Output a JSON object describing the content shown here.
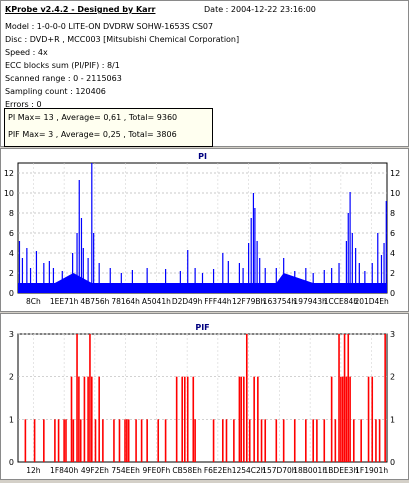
{
  "info": {
    "title": "KProbe v2.4.2 - Designed by Karr",
    "date": "Date : 2004-12-22 23:16:00",
    "lines": [
      "Model : 1-0-0-0 LITE-ON DVDRW SOHW-1653S CS07",
      "Disc : DVD+R , MCC003 [Mitsubishi Chemical Corporation]",
      "Speed : 4x",
      "ECC blocks sum (PI/PIF) : 8/1",
      "Scanned range : 0 - 2115063",
      "Sampling count : 120406",
      "Errors : 0"
    ],
    "summary": [
      "PI Max= 13 , Average= 0,61 , Total= 9360",
      "PIF Max= 3 , Average= 0,25 , Total= 3806"
    ]
  },
  "chart_data": [
    {
      "type": "bar",
      "title": "PI",
      "color": "#0000ff",
      "ylim": [
        0,
        13
      ],
      "yticks": [
        0,
        2,
        4,
        6,
        8,
        10,
        12
      ],
      "xticks": [
        "8Ch",
        "1EE71h",
        "4B756h",
        "78164h",
        "A5041h",
        "D2D49h",
        "FFF44h",
        "12F79Bh",
        "163754h",
        "197943h",
        "1CCE84h",
        "201D4Eh"
      ],
      "grid": true,
      "baseline": [
        [
          0,
          1
        ],
        [
          0.1,
          1
        ],
        [
          0.15,
          2
        ],
        [
          0.2,
          1
        ],
        [
          0.4,
          1
        ],
        [
          0.5,
          1
        ],
        [
          0.7,
          1
        ],
        [
          0.72,
          2
        ],
        [
          0.8,
          1
        ],
        [
          1,
          1
        ]
      ],
      "peaks": [
        [
          0.004,
          5.2
        ],
        [
          0.012,
          3.5
        ],
        [
          0.024,
          4.5
        ],
        [
          0.034,
          2.5
        ],
        [
          0.05,
          4.2
        ],
        [
          0.07,
          3.0
        ],
        [
          0.085,
          3.2
        ],
        [
          0.096,
          2.5
        ],
        [
          0.12,
          2.2
        ],
        [
          0.148,
          4.0
        ],
        [
          0.16,
          6.0
        ],
        [
          0.166,
          11.3
        ],
        [
          0.172,
          7.5
        ],
        [
          0.177,
          4.5
        ],
        [
          0.19,
          3.5
        ],
        [
          0.2,
          13.0
        ],
        [
          0.205,
          6.0
        ],
        [
          0.22,
          3.0
        ],
        [
          0.25,
          2.5
        ],
        [
          0.28,
          2.0
        ],
        [
          0.31,
          2.3
        ],
        [
          0.35,
          2.5
        ],
        [
          0.4,
          2.4
        ],
        [
          0.44,
          2.2
        ],
        [
          0.46,
          4.3
        ],
        [
          0.48,
          2.5
        ],
        [
          0.5,
          2.0
        ],
        [
          0.53,
          2.4
        ],
        [
          0.555,
          4.0
        ],
        [
          0.57,
          3.2
        ],
        [
          0.6,
          3.0
        ],
        [
          0.61,
          2.5
        ],
        [
          0.625,
          5.0
        ],
        [
          0.632,
          7.5
        ],
        [
          0.638,
          10.0
        ],
        [
          0.642,
          8.5
        ],
        [
          0.648,
          5.2
        ],
        [
          0.655,
          3.5
        ],
        [
          0.67,
          2.5
        ],
        [
          0.7,
          2.5
        ],
        [
          0.72,
          3.5
        ],
        [
          0.75,
          2.2
        ],
        [
          0.78,
          2.5
        ],
        [
          0.8,
          2.0
        ],
        [
          0.83,
          2.3
        ],
        [
          0.85,
          2.5
        ],
        [
          0.87,
          3.0
        ],
        [
          0.89,
          5.2
        ],
        [
          0.895,
          8.0
        ],
        [
          0.9,
          10.1
        ],
        [
          0.906,
          6.0
        ],
        [
          0.915,
          4.5
        ],
        [
          0.925,
          3.0
        ],
        [
          0.94,
          2.2
        ],
        [
          0.96,
          3.0
        ],
        [
          0.975,
          6.0
        ],
        [
          0.985,
          3.8
        ],
        [
          0.992,
          5.0
        ],
        [
          0.998,
          9.2
        ]
      ]
    },
    {
      "type": "bar",
      "title": "PIF",
      "color": "#ff0000",
      "ylim": [
        0,
        3
      ],
      "yticks": [
        0,
        1,
        2,
        3
      ],
      "xticks": [
        "12h",
        "1F840h",
        "49F2Eh",
        "754EEh",
        "9FE0Fh",
        "CB58Eh",
        "F6E2Eh",
        "1254C2h",
        "157D70h",
        "18B001h",
        "1BDEE3h",
        "1F1901h"
      ],
      "grid": true,
      "bars": [
        [
          0.02,
          1
        ],
        [
          0.045,
          1
        ],
        [
          0.07,
          1
        ],
        [
          0.1,
          1
        ],
        [
          0.11,
          1
        ],
        [
          0.125,
          1
        ],
        [
          0.13,
          1
        ],
        [
          0.145,
          2
        ],
        [
          0.15,
          1
        ],
        [
          0.16,
          3
        ],
        [
          0.165,
          2
        ],
        [
          0.17,
          1
        ],
        [
          0.18,
          2
        ],
        [
          0.19,
          2
        ],
        [
          0.195,
          3
        ],
        [
          0.2,
          2
        ],
        [
          0.21,
          1
        ],
        [
          0.22,
          2
        ],
        [
          0.23,
          1
        ],
        [
          0.26,
          1
        ],
        [
          0.275,
          1
        ],
        [
          0.29,
          1
        ],
        [
          0.295,
          1
        ],
        [
          0.3,
          1
        ],
        [
          0.32,
          1
        ],
        [
          0.335,
          1
        ],
        [
          0.35,
          1
        ],
        [
          0.38,
          1
        ],
        [
          0.4,
          1
        ],
        [
          0.43,
          2
        ],
        [
          0.445,
          2
        ],
        [
          0.452,
          2
        ],
        [
          0.46,
          2
        ],
        [
          0.475,
          2
        ],
        [
          0.48,
          1
        ],
        [
          0.53,
          1
        ],
        [
          0.555,
          1
        ],
        [
          0.565,
          1
        ],
        [
          0.585,
          1
        ],
        [
          0.6,
          2
        ],
        [
          0.605,
          2
        ],
        [
          0.612,
          2
        ],
        [
          0.62,
          3
        ],
        [
          0.628,
          1
        ],
        [
          0.64,
          2
        ],
        [
          0.65,
          2
        ],
        [
          0.66,
          1
        ],
        [
          0.67,
          1
        ],
        [
          0.7,
          1
        ],
        [
          0.72,
          1
        ],
        [
          0.75,
          1
        ],
        [
          0.78,
          1
        ],
        [
          0.8,
          1
        ],
        [
          0.81,
          1
        ],
        [
          0.83,
          1
        ],
        [
          0.85,
          2
        ],
        [
          0.86,
          1
        ],
        [
          0.87,
          3
        ],
        [
          0.875,
          2
        ],
        [
          0.88,
          2
        ],
        [
          0.885,
          3
        ],
        [
          0.89,
          2
        ],
        [
          0.895,
          3
        ],
        [
          0.9,
          2
        ],
        [
          0.91,
          1
        ],
        [
          0.93,
          1
        ],
        [
          0.95,
          2
        ],
        [
          0.96,
          2
        ],
        [
          0.97,
          1
        ],
        [
          0.98,
          1
        ],
        [
          0.995,
          3
        ]
      ]
    }
  ]
}
